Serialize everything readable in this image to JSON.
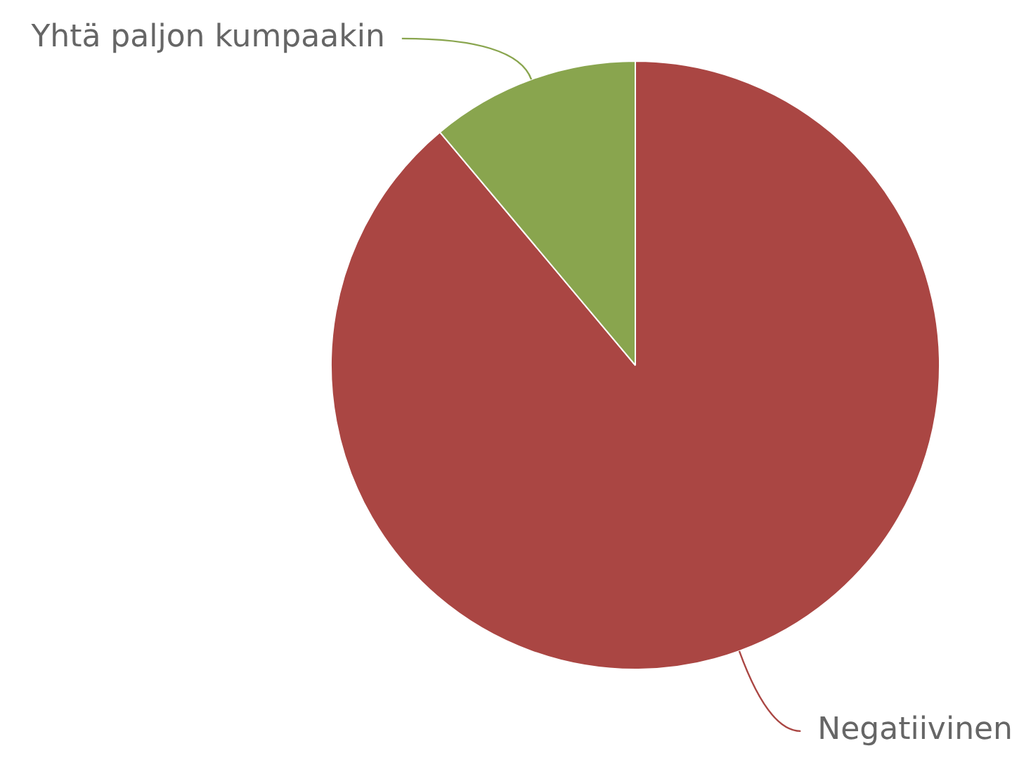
{
  "chart_data": {
    "type": "pie",
    "categories": [
      "Negatiivinen",
      "Yhtä paljon kumpaakin"
    ],
    "values": [
      88.9,
      11.1
    ],
    "colors": [
      "#aa4643",
      "#89a54e"
    ]
  }
}
